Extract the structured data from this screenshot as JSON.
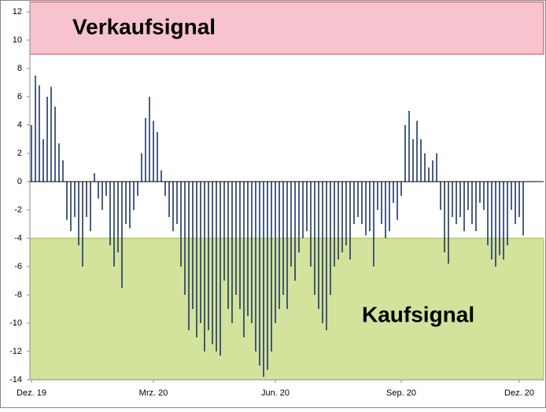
{
  "chart_data": {
    "type": "bar",
    "categories": [
      "Dez. 19",
      null,
      null,
      null,
      null,
      null,
      null,
      null,
      null,
      null,
      null,
      null,
      null,
      null,
      null,
      null,
      null,
      null,
      null,
      null,
      null,
      null,
      null,
      null,
      null,
      null,
      null,
      null,
      null,
      null,
      null,
      "Mrz. 20",
      null,
      null,
      null,
      null,
      null,
      null,
      null,
      null,
      null,
      null,
      null,
      null,
      null,
      null,
      null,
      null,
      null,
      null,
      null,
      null,
      null,
      null,
      null,
      null,
      null,
      null,
      null,
      null,
      null,
      null,
      "Jun. 20",
      null,
      null,
      null,
      null,
      null,
      null,
      null,
      null,
      null,
      null,
      null,
      null,
      null,
      null,
      null,
      null,
      null,
      null,
      null,
      null,
      null,
      null,
      null,
      null,
      null,
      null,
      null,
      null,
      null,
      null,
      null,
      "Sep. 20",
      null,
      null,
      null,
      null,
      null,
      null,
      null,
      null,
      null,
      null,
      null,
      null,
      null,
      null,
      null,
      null,
      null,
      null,
      null,
      null,
      null,
      null,
      null,
      null,
      null,
      null,
      null,
      null,
      null,
      "Dez. 20",
      null
    ],
    "values": [
      4,
      7.5,
      6.8,
      3,
      6,
      6.7,
      5.3,
      2.7,
      1.5,
      -2.7,
      -3.5,
      -2.5,
      -4.5,
      -6,
      -2.5,
      -3.5,
      0.6,
      -1.2,
      -2,
      -1,
      -4.5,
      -6,
      -5,
      -7.5,
      -3,
      -3.3,
      -2,
      -1,
      2,
      4.5,
      6,
      4.3,
      3.5,
      0.8,
      -1,
      -2.5,
      -3.5,
      -3,
      -6,
      -8,
      -10.5,
      -9,
      -11,
      -10,
      -12,
      -10.5,
      -11.5,
      -12,
      -12.3,
      -7,
      -9,
      -10,
      -8,
      -9,
      -11,
      -9.5,
      -10,
      -12,
      -13,
      -13.8,
      -13.3,
      -12,
      -10,
      -9,
      -8,
      -9,
      -6,
      -7,
      -5,
      -4,
      -3.5,
      -6,
      -8,
      -9,
      -10,
      -10.5,
      -8,
      -6,
      -5.5,
      -5,
      -4.5,
      -5.5,
      -3,
      -2.5,
      -3,
      -3.8,
      -3.5,
      -6,
      -2,
      -3,
      -4,
      -3.5,
      -1.5,
      -2.7,
      -1,
      4,
      5,
      3,
      4.3,
      3,
      2,
      1,
      1.5,
      2,
      -2,
      -5,
      -5.8,
      -2.5,
      -3,
      -2.5,
      -3.5,
      -2,
      -3,
      -3.5,
      -1.5,
      -2,
      -4.5,
      -5.5,
      -6,
      -5.2,
      -5.5,
      -4.5,
      -2,
      -3,
      -2.5,
      -3.8
    ],
    "color": "#1f3864",
    "ylim": [
      -14,
      12.7
    ],
    "yticks": [
      -14,
      -12,
      -10,
      -8,
      -6,
      -4,
      -2,
      0,
      2,
      4,
      6,
      8,
      10,
      12
    ],
    "zones": [
      {
        "label": "Verkaufsignal",
        "from": 9,
        "to": 12.7,
        "color": "#f6c3cf"
      },
      {
        "label": "Kaufsignal",
        "from": -4,
        "to": -14,
        "color": "#d3e39c"
      }
    ]
  }
}
